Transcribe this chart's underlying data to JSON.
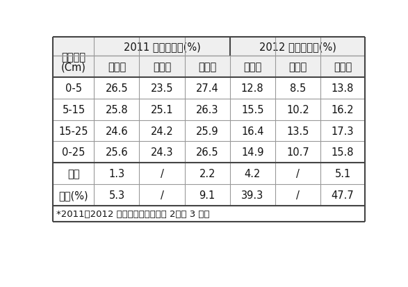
{
  "title_row1_col0": "土层深度",
  "title_row1_span1": "2011 年水分含量(%)",
  "title_row1_span2": "2012 年水分含量(%)",
  "title_row2": [
    "(Cm)",
    "间松耕",
    "常规耕",
    "全松耕",
    "间松耕",
    "常规耕",
    "全松耕"
  ],
  "rows": [
    [
      "0-5",
      "26.5",
      "23.5",
      "27.4",
      "12.8",
      "8.5",
      "13.8"
    ],
    [
      "5-15",
      "25.8",
      "25.1",
      "26.3",
      "15.5",
      "10.2",
      "16.2"
    ],
    [
      "15-25",
      "24.6",
      "24.2",
      "25.9",
      "16.4",
      "13.5",
      "17.3"
    ],
    [
      "0-25",
      "25.6",
      "24.3",
      "26.5",
      "14.9",
      "10.7",
      "15.8"
    ],
    [
      "提高",
      "1.3",
      "/",
      "2.2",
      "4.2",
      "/",
      "5.1"
    ],
    [
      "提高(%)",
      "5.3",
      "/",
      "9.1",
      "39.3",
      "/",
      "47.7"
    ]
  ],
  "footnote": "*2011，2012 年分别为间隔深松第 2、第 3 年。",
  "bg_color": "#ffffff",
  "border_color": "#999999",
  "thick_border_color": "#444444",
  "header_bg": "#efefef",
  "text_color": "#111111",
  "font_size": 10.5,
  "header_font_size": 10.5,
  "footnote_font_size": 9.5
}
